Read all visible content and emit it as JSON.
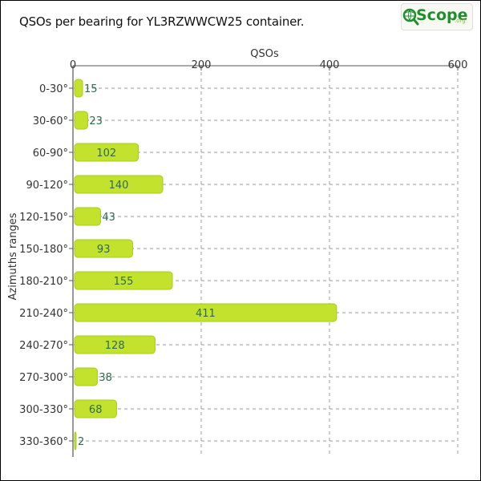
{
  "title": "QSOs per bearing for YL3RZWWCW25 container.",
  "logo": {
    "text": "Scope",
    "suffix": ".org",
    "icon": "magnifier-globe-icon"
  },
  "colors": {
    "bar": "#c2e22d",
    "bar_edge": "#a6cc1a",
    "grid": "#9a9a9a",
    "label": "#2f6a4f"
  },
  "chart_data": {
    "type": "bar",
    "orientation": "horizontal",
    "xlabel": "QSOs",
    "ylabel": "Azimuths ranges",
    "xlim": [
      0,
      600
    ],
    "xticks": [
      "0",
      "200",
      "400",
      "600"
    ],
    "xtick_values": [
      0,
      200,
      400,
      600
    ],
    "xaxis_position": "top",
    "grid": true,
    "categories": [
      "0-30°",
      "30-60°",
      "60-90°",
      "90-120°",
      "120-150°",
      "150-180°",
      "180-210°",
      "210-240°",
      "240-270°",
      "270-300°",
      "300-330°",
      "330-360°"
    ],
    "values": [
      15,
      23,
      102,
      140,
      43,
      93,
      155,
      411,
      128,
      38,
      68,
      2
    ],
    "value_labels": [
      "15",
      "23",
      "102",
      "140",
      "43",
      "93",
      "155",
      "411",
      "128",
      "38",
      "68",
      "2"
    ]
  }
}
